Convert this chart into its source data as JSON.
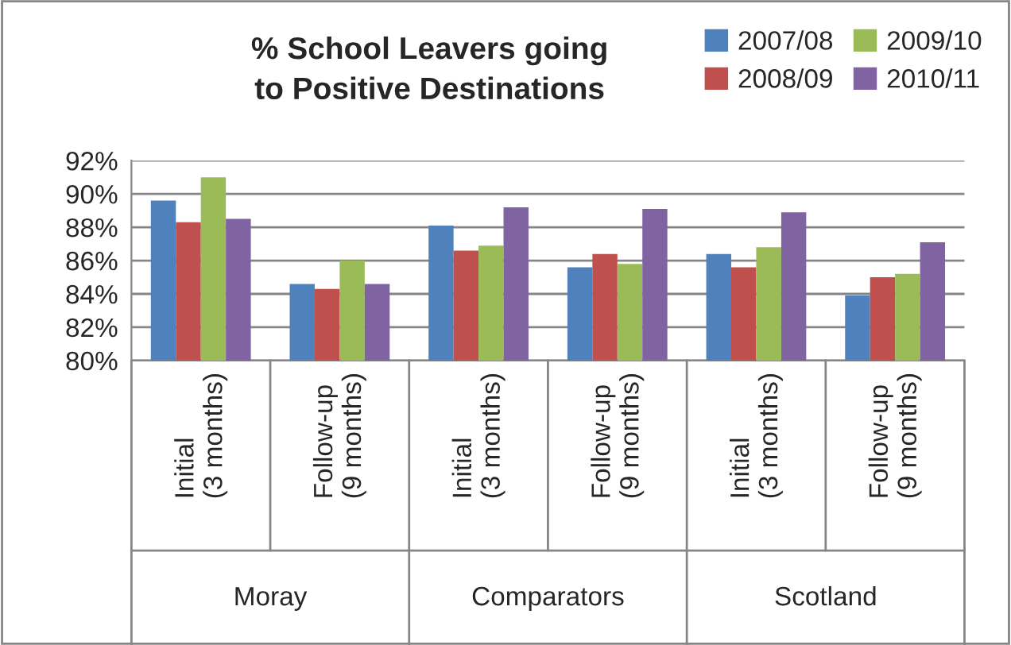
{
  "chart_data": {
    "type": "bar",
    "title": "% School Leavers going\nto Positive Destinations",
    "categories": [
      "Initial\n(3 months)",
      "Follow-up\n(9 months)",
      "Initial\n(3 months)",
      "Follow-up\n(9 months)",
      "Initial\n(3 months)",
      "Follow-up\n(9 months)"
    ],
    "annotations": [
      "Moray",
      "Comparators",
      "Scotland"
    ],
    "series": [
      {
        "name": "2007/08",
        "color": "#4f81bd",
        "values": [
          89.6,
          84.6,
          88.1,
          85.6,
          86.4,
          83.9
        ]
      },
      {
        "name": "2008/09",
        "color": "#c0504d",
        "values": [
          88.3,
          84.3,
          86.6,
          86.4,
          85.6,
          85.0
        ]
      },
      {
        "name": "2009/10",
        "color": "#9bbb59",
        "values": [
          91.0,
          86.0,
          86.9,
          85.8,
          86.8,
          85.2
        ]
      },
      {
        "name": "2010/11",
        "color": "#8064a2",
        "values": [
          88.5,
          84.6,
          89.2,
          89.1,
          88.9,
          87.1
        ]
      }
    ],
    "ylim": [
      80,
      92
    ],
    "yticks": [
      {
        "value": 80,
        "label": "80%"
      },
      {
        "value": 82,
        "label": "82%"
      },
      {
        "value": 84,
        "label": "84%"
      },
      {
        "value": 86,
        "label": "86%"
      },
      {
        "value": 88,
        "label": "88%"
      },
      {
        "value": 90,
        "label": "90%"
      },
      {
        "value": 92,
        "label": "92%"
      }
    ],
    "grid": "y",
    "legend": "top right"
  }
}
